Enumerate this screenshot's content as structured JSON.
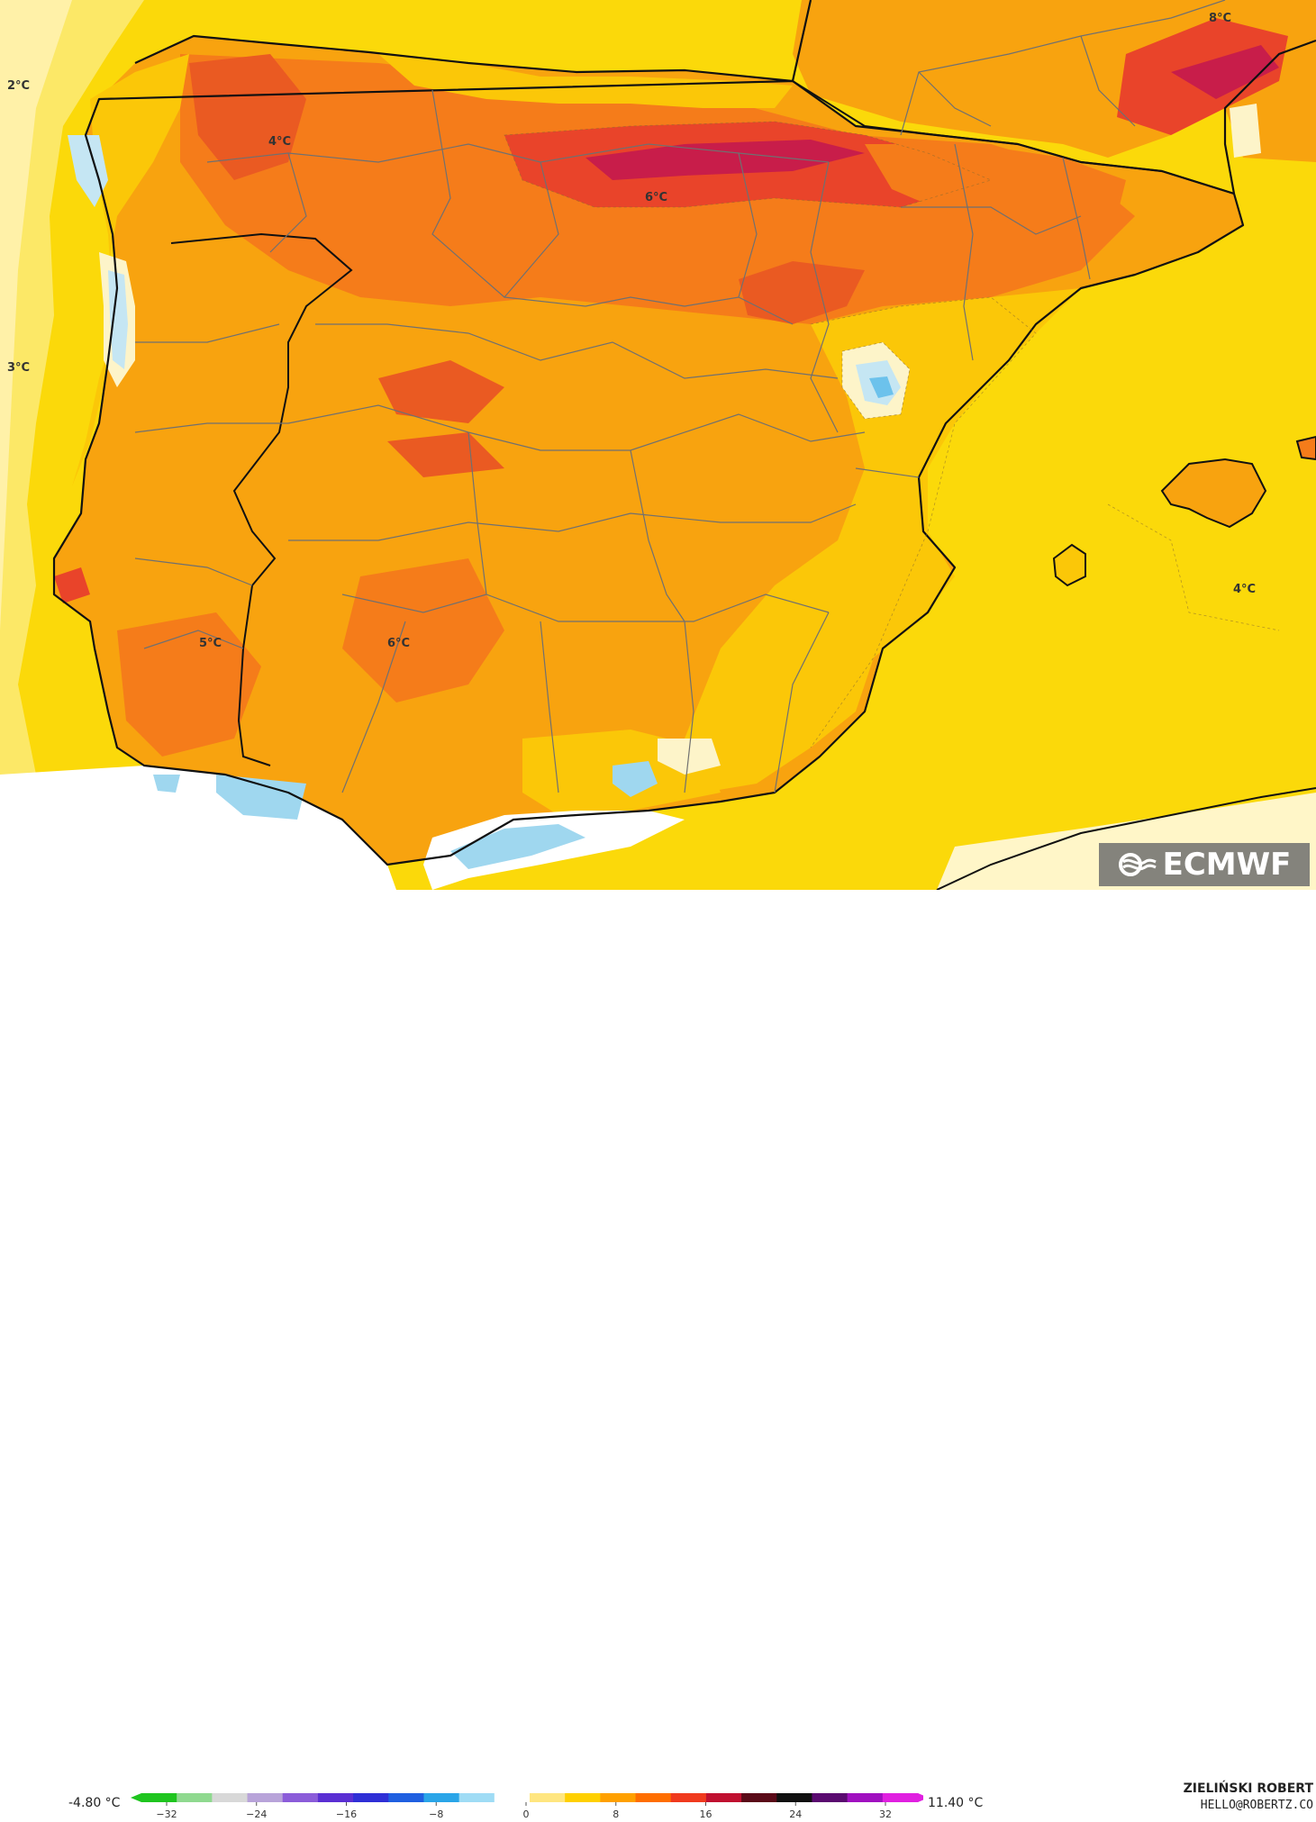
{
  "map": {
    "region": "Iberian Peninsula",
    "variable": "temperature",
    "colors": {
      "sea": "#fbd90a",
      "land_base": "#f8a30f",
      "land_warm": "#f57c1a",
      "land_hot": "#e9442a",
      "land_hottest": "#c81d4a",
      "cool_white": "#fdf4c9",
      "cold_light_blue": "#c5e6f3",
      "cold_blue": "#6cc2ec",
      "coast": "#111111",
      "borders": "#707070"
    },
    "labels": [
      {
        "id": "l1",
        "text": "2°C"
      },
      {
        "id": "l2",
        "text": "3°C"
      },
      {
        "id": "l3",
        "text": "4°C"
      },
      {
        "id": "l4",
        "text": "6°C"
      },
      {
        "id": "l5",
        "text": "8°C"
      },
      {
        "id": "l6",
        "text": "5°C"
      },
      {
        "id": "l7",
        "text": "6°C"
      },
      {
        "id": "l8",
        "text": "4°C"
      }
    ]
  },
  "legend": {
    "min_label": "-4.80 °C",
    "max_label": "11.40 °C",
    "ticks": [
      "−32",
      "−24",
      "−16",
      "−8",
      "0",
      "8",
      "16",
      "24",
      "32"
    ],
    "colors": [
      "#1fc51f",
      "#8fd98f",
      "#d8d8d8",
      "#b8a3d9",
      "#8b5cd9",
      "#5a2fd3",
      "#2f2fd6",
      "#1f5fe0",
      "#2aa5e8",
      "#9fdcf5",
      "#ffffff",
      "#ffe680",
      "#ffd000",
      "#ffa000",
      "#ff6e00",
      "#f03a1e",
      "#c01030",
      "#5a0a18",
      "#101010",
      "#5a0a70",
      "#a010c0",
      "#e020e0"
    ]
  },
  "logo": {
    "text": "ECMWF"
  },
  "credits": {
    "name": "ZIELIŃSKI ROBERT",
    "email": "HELLO@ROBERTZ.CO"
  }
}
